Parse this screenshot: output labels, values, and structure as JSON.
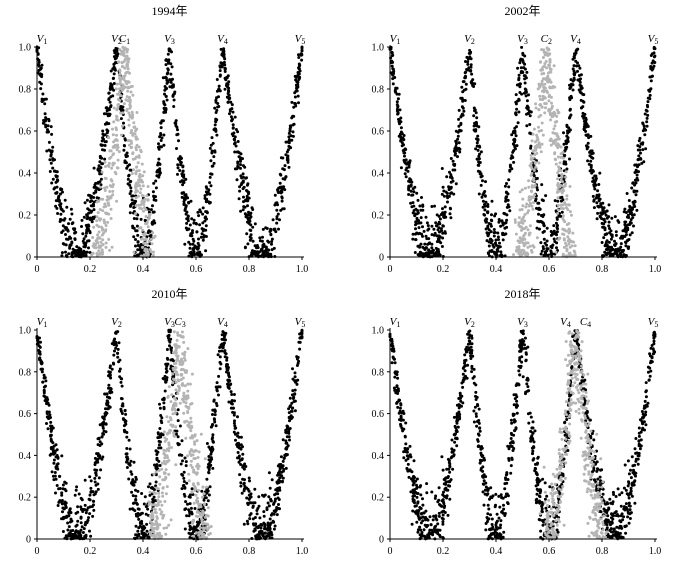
{
  "chart_data": [
    {
      "type": "scatter",
      "title": "1994年",
      "xlim": [
        0,
        1
      ],
      "ylim": [
        0,
        1
      ],
      "xticks": [
        "0",
        "0.2",
        "0.4",
        "0.6",
        "0.8",
        "1.0"
      ],
      "yticks": [
        "0",
        "0.2",
        "0.4",
        "0.6",
        "0.8",
        "1.0"
      ],
      "grid": false,
      "colors": {
        "vertex": "#000000",
        "cluster": "#b4b4b4"
      },
      "vertices": [
        {
          "letter": "V",
          "sub": "1",
          "x": 0.0
        },
        {
          "letter": "V",
          "sub": "2",
          "x": 0.3
        },
        {
          "letter": "V",
          "sub": "3",
          "x": 0.5
        },
        {
          "letter": "V",
          "sub": "4",
          "x": 0.7
        },
        {
          "letter": "V",
          "sub": "5",
          "x": 1.0
        }
      ],
      "cluster": {
        "letter": "C",
        "sub": "1",
        "x": 0.33
      }
    },
    {
      "type": "scatter",
      "title": "2002年",
      "xlim": [
        0,
        1
      ],
      "ylim": [
        0,
        1
      ],
      "xticks": [
        "0",
        "0.2",
        "0.4",
        "0.6",
        "0.8",
        "1.0"
      ],
      "yticks": [
        "0",
        "0.2",
        "0.4",
        "0.6",
        "0.8",
        "1.0"
      ],
      "grid": false,
      "colors": {
        "vertex": "#000000",
        "cluster": "#b4b4b4"
      },
      "vertices": [
        {
          "letter": "V",
          "sub": "1",
          "x": 0.0
        },
        {
          "letter": "V",
          "sub": "2",
          "x": 0.3
        },
        {
          "letter": "V",
          "sub": "3",
          "x": 0.5
        },
        {
          "letter": "V",
          "sub": "4",
          "x": 0.7
        },
        {
          "letter": "V",
          "sub": "5",
          "x": 1.0
        }
      ],
      "cluster": {
        "letter": "C",
        "sub": "2",
        "x": 0.59
      }
    },
    {
      "type": "scatter",
      "title": "2010年",
      "xlim": [
        0,
        1
      ],
      "ylim": [
        0,
        1
      ],
      "xticks": [
        "0",
        "0.2",
        "0.4",
        "0.6",
        "0.8",
        "1.0"
      ],
      "yticks": [
        "0",
        "0.2",
        "0.4",
        "0.6",
        "0.8",
        "1.0"
      ],
      "grid": false,
      "colors": {
        "vertex": "#000000",
        "cluster": "#b4b4b4"
      },
      "vertices": [
        {
          "letter": "V",
          "sub": "1",
          "x": 0.0
        },
        {
          "letter": "V",
          "sub": "2",
          "x": 0.3
        },
        {
          "letter": "V",
          "sub": "3",
          "x": 0.5
        },
        {
          "letter": "V",
          "sub": "4",
          "x": 0.7
        },
        {
          "letter": "V",
          "sub": "5",
          "x": 1.0
        }
      ],
      "cluster": {
        "letter": "C",
        "sub": "3",
        "x": 0.54
      }
    },
    {
      "type": "scatter",
      "title": "2018年",
      "xlim": [
        0,
        1
      ],
      "ylim": [
        0,
        1
      ],
      "xticks": [
        "0",
        "0.2",
        "0.4",
        "0.6",
        "0.8",
        "1.0"
      ],
      "yticks": [
        "0",
        "0.2",
        "0.4",
        "0.6",
        "0.8",
        "1.0"
      ],
      "grid": false,
      "colors": {
        "vertex": "#000000",
        "cluster": "#b4b4b4"
      },
      "vertices": [
        {
          "letter": "V",
          "sub": "1",
          "x": 0.0
        },
        {
          "letter": "V",
          "sub": "2",
          "x": 0.3
        },
        {
          "letter": "V",
          "sub": "3",
          "x": 0.5
        },
        {
          "letter": "V",
          "sub": "4",
          "x": 0.7
        },
        {
          "letter": "V",
          "sub": "5",
          "x": 1.0
        }
      ],
      "cluster": {
        "letter": "C",
        "sub": "4",
        "x": 0.7
      }
    }
  ]
}
